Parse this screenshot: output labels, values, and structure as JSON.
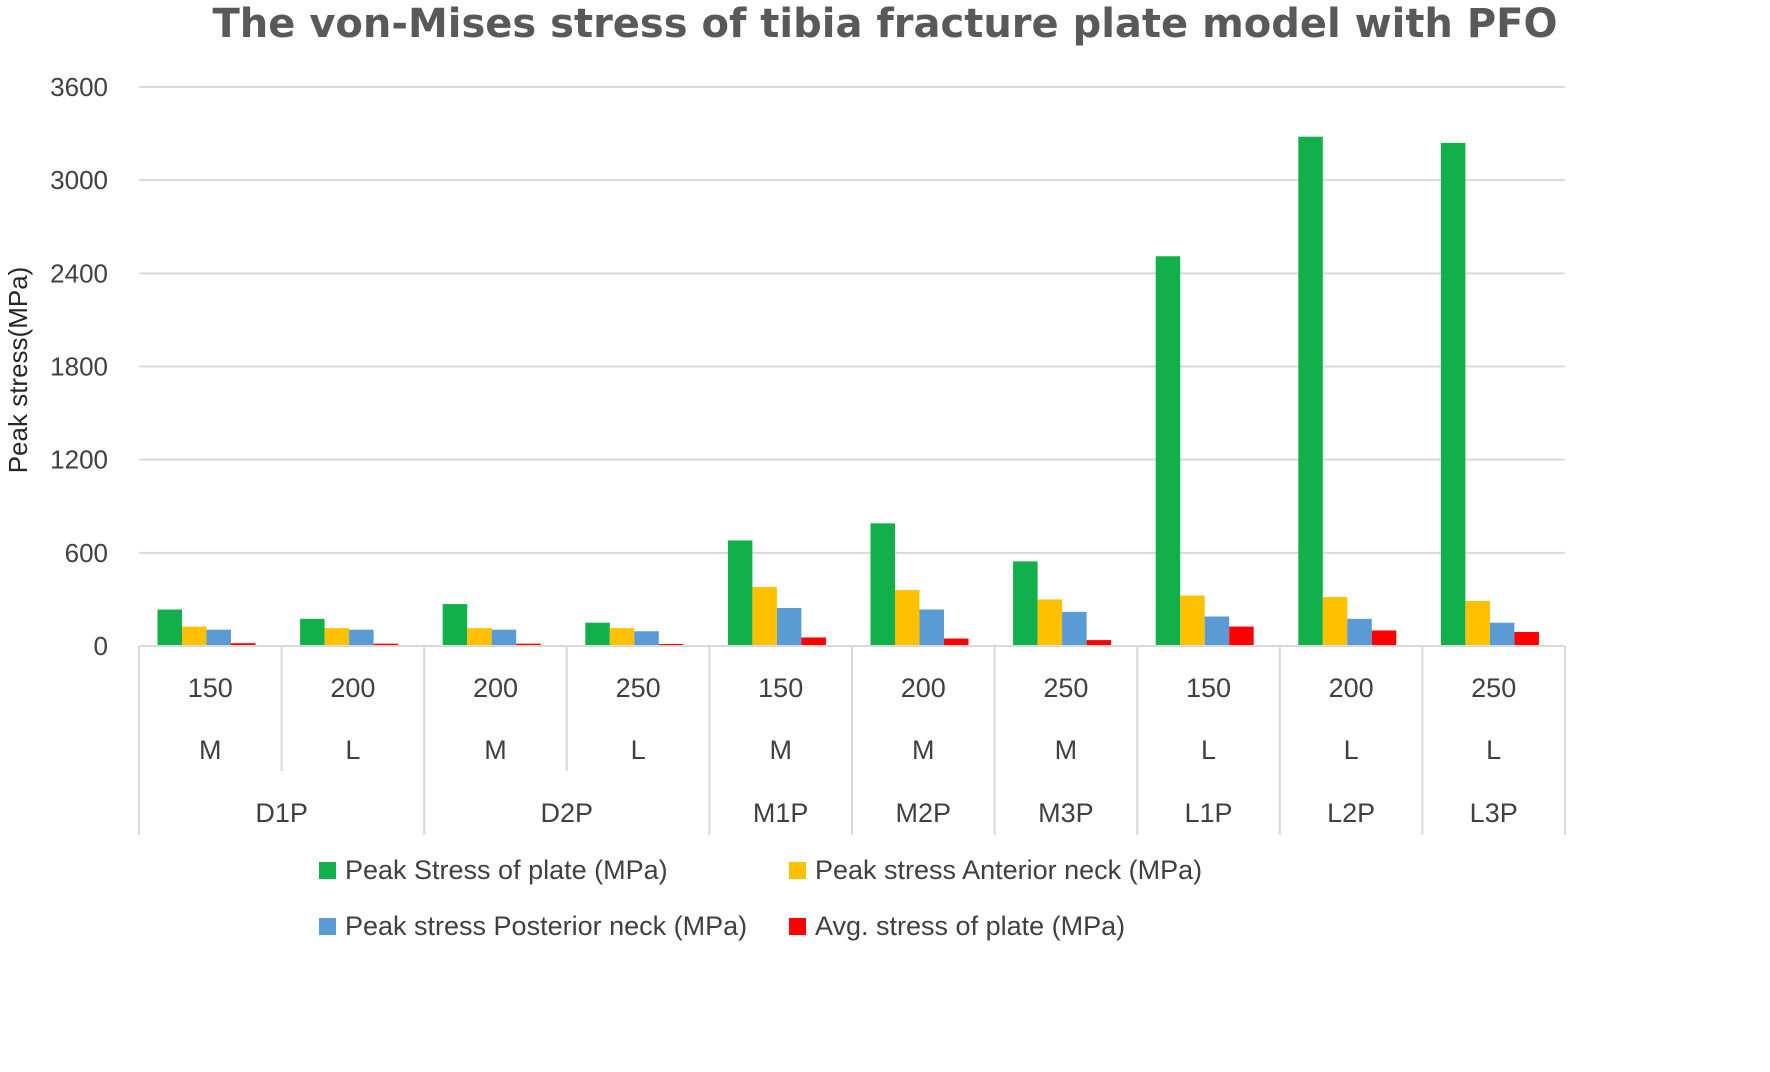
{
  "chart_data": {
    "type": "bar",
    "title": "The von-Mises stress of tibia fracture plate model with PFO",
    "ylabel": "Peak stress(MPa)",
    "xlabel": "",
    "ylim": [
      0,
      3600
    ],
    "yticks": [
      "0",
      "600",
      "1200",
      "1800",
      "2400",
      "3000",
      "3600"
    ],
    "grid": true,
    "legend_position": "bottom",
    "categories": [
      {
        "level1": "150",
        "level2": "M",
        "group": "D1P"
      },
      {
        "level1": "200",
        "level2": "L",
        "group": "D1P"
      },
      {
        "level1": "200",
        "level2": "M",
        "group": "D2P"
      },
      {
        "level1": "250",
        "level2": "L",
        "group": "D2P"
      },
      {
        "level1": "150",
        "level2": "M",
        "group": "M1P"
      },
      {
        "level1": "200",
        "level2": "M",
        "group": "M2P"
      },
      {
        "level1": "250",
        "level2": "M",
        "group": "M3P"
      },
      {
        "level1": "150",
        "level2": "L",
        "group": "L1P"
      },
      {
        "level1": "200",
        "level2": "L",
        "group": "L2P"
      },
      {
        "level1": "250",
        "level2": "L",
        "group": "L3P"
      }
    ],
    "groups": [
      "D1P",
      "D2P",
      "M1P",
      "M2P",
      "M3P",
      "L1P",
      "L2P",
      "L3P"
    ],
    "series": [
      {
        "name": "Peak Stress of plate (MPa)",
        "color": "#12b04a",
        "values": [
          235,
          175,
          270,
          150,
          680,
          790,
          545,
          2510,
          3280,
          3240
        ]
      },
      {
        "name": "Peak stress Anterior neck (MPa)",
        "color": "#ffc000",
        "values": [
          125,
          115,
          115,
          115,
          380,
          360,
          300,
          325,
          315,
          290
        ]
      },
      {
        "name": "Peak stress Posterior neck (MPa)",
        "color": "#5b9bd5",
        "values": [
          105,
          105,
          105,
          95,
          245,
          235,
          220,
          190,
          175,
          150
        ]
      },
      {
        "name": "Avg. stress of plate (MPa)",
        "color": "#ff0000",
        "values": [
          18,
          15,
          15,
          13,
          55,
          48,
          38,
          125,
          100,
          90
        ]
      }
    ]
  }
}
